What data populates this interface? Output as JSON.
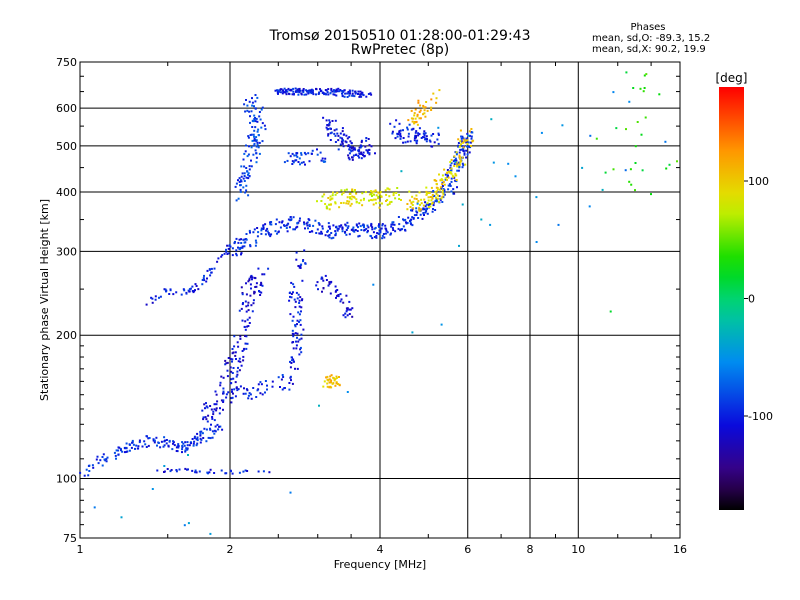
{
  "chart_data": {
    "type": "scatter",
    "title": "Tromsø 20150510 01:28:00-01:29:43",
    "subtitle": "RwPretec (8p)",
    "xlabel": "Frequency [MHz]",
    "ylabel": "Stationary phase Virtual Height [km]",
    "x_scale": "log",
    "y_scale": "log",
    "xlim": [
      1,
      16
    ],
    "ylim": [
      75,
      750
    ],
    "x_ticks": [
      1,
      2,
      4,
      6,
      8,
      10,
      16
    ],
    "x_tick_labels": [
      "1",
      "2",
      "4",
      "6",
      "8",
      "10",
      "16"
    ],
    "y_ticks": [
      75,
      100,
      200,
      300,
      400,
      500,
      600,
      750
    ],
    "y_tick_labels": [
      "75",
      "100",
      "200",
      "300",
      "400",
      "500",
      "600",
      "750"
    ],
    "grid": true,
    "stats": {
      "header": "Phases",
      "o_line": "mean, sd,O: -89.3, 15.2",
      "x_line": "mean, sd,X:  90.2, 19.9"
    },
    "colorbar": {
      "label": "[deg]",
      "range": [
        -180,
        180
      ],
      "ticks": [
        100,
        0,
        -100
      ],
      "tick_labels": [
        "100",
        "0",
        "-100"
      ]
    },
    "clusters": [
      {
        "trace": [
          [
            1.0,
            103
          ],
          [
            1.1,
            108
          ],
          [
            1.2,
            114
          ],
          [
            1.3,
            118
          ],
          [
            1.4,
            120
          ],
          [
            1.5,
            118
          ],
          [
            1.6,
            116
          ],
          [
            1.7,
            120
          ],
          [
            1.8,
            124
          ],
          [
            1.9,
            128
          ]
        ],
        "n": 160,
        "jf": 0.03,
        "jh": 0.025,
        "phase": -95
      },
      {
        "trace": [
          [
            1.45,
            104
          ],
          [
            1.7,
            104
          ],
          [
            2.0,
            103
          ],
          [
            2.5,
            103
          ]
        ],
        "n": 35,
        "jf": 0.02,
        "jh": 0.01,
        "phase": -100
      },
      {
        "trace": [
          [
            1.38,
            235
          ],
          [
            1.5,
            248
          ],
          [
            1.62,
            246
          ],
          [
            1.72,
            252
          ],
          [
            1.85,
            275
          ],
          [
            1.98,
            305
          ],
          [
            2.1,
            320
          ]
        ],
        "n": 70,
        "jf": 0.015,
        "jh": 0.015,
        "phase": -100
      },
      {
        "trace": [
          [
            1.8,
            135
          ],
          [
            1.95,
            150
          ],
          [
            2.05,
            175
          ],
          [
            2.1,
            200
          ],
          [
            2.2,
            250
          ],
          [
            2.3,
            270
          ]
        ],
        "n": 160,
        "jf": 0.04,
        "jh": 0.05,
        "phase": -110
      },
      {
        "trace": [
          [
            2.0,
            150
          ],
          [
            2.3,
            153
          ],
          [
            2.6,
            160
          ],
          [
            2.7,
            180
          ],
          [
            2.75,
            210
          ],
          [
            2.7,
            240
          ],
          [
            2.8,
            300
          ]
        ],
        "n": 130,
        "jf": 0.03,
        "jh": 0.04,
        "phase": -100
      },
      {
        "trace": [
          [
            3.0,
            260
          ],
          [
            3.2,
            250
          ],
          [
            3.4,
            235
          ],
          [
            3.5,
            220
          ]
        ],
        "n": 45,
        "jf": 0.02,
        "jh": 0.04,
        "phase": -115
      },
      {
        "trace": [
          [
            2.05,
            300
          ],
          [
            2.3,
            330
          ],
          [
            2.7,
            345
          ],
          [
            3.2,
            330
          ],
          [
            3.6,
            335
          ],
          [
            4.0,
            330
          ],
          [
            4.5,
            345
          ],
          [
            5.0,
            370
          ],
          [
            5.5,
            410
          ],
          [
            5.8,
            470
          ],
          [
            6.0,
            530
          ]
        ],
        "n": 420,
        "jf": 0.03,
        "jh": 0.035,
        "phase": -95
      },
      {
        "trace": [
          [
            2.1,
            400
          ],
          [
            2.2,
            480
          ],
          [
            2.3,
            560
          ],
          [
            2.15,
            620
          ]
        ],
        "n": 120,
        "jf": 0.03,
        "jh": 0.06,
        "phase": -85
      },
      {
        "trace": [
          [
            2.5,
            650
          ],
          [
            2.8,
            650
          ],
          [
            3.2,
            650
          ],
          [
            3.7,
            640
          ]
        ],
        "n": 160,
        "jf": 0.05,
        "jh": 0.015,
        "phase": -100
      },
      {
        "trace": [
          [
            3.1,
            560
          ],
          [
            3.4,
            510
          ],
          [
            3.6,
            480
          ],
          [
            3.8,
            500
          ]
        ],
        "n": 110,
        "jf": 0.03,
        "jh": 0.04,
        "phase": -105
      },
      {
        "trace": [
          [
            4.2,
            550
          ],
          [
            4.5,
            530
          ],
          [
            4.8,
            520
          ],
          [
            5.2,
            510
          ]
        ],
        "n": 70,
        "jf": 0.03,
        "jh": 0.04,
        "phase": -100
      },
      {
        "trace": [
          [
            2.6,
            470
          ],
          [
            2.9,
            470
          ],
          [
            3.1,
            480
          ]
        ],
        "n": 40,
        "jf": 0.03,
        "jh": 0.03,
        "phase": -90
      },
      {
        "trace": [
          [
            3.1,
            380
          ],
          [
            3.5,
            390
          ],
          [
            3.9,
            385
          ],
          [
            4.3,
            395
          ]
        ],
        "n": 110,
        "jf": 0.04,
        "jh": 0.04,
        "phase": 85
      },
      {
        "trace": [
          [
            4.6,
            380
          ],
          [
            5.0,
            390
          ],
          [
            5.4,
            420
          ],
          [
            5.8,
            470
          ],
          [
            6.0,
            540
          ]
        ],
        "n": 130,
        "jf": 0.03,
        "jh": 0.05,
        "phase": 95
      },
      {
        "trace": [
          [
            4.6,
            560
          ],
          [
            4.9,
            600
          ],
          [
            5.2,
            640
          ]
        ],
        "n": 40,
        "jf": 0.02,
        "jh": 0.05,
        "phase": 110
      },
      {
        "trace": [
          [
            3.1,
            160
          ],
          [
            3.3,
            160
          ]
        ],
        "n": 35,
        "jf": 0.015,
        "jh": 0.03,
        "phase": 105
      },
      {
        "trace": [
          [
            1.0,
            78
          ],
          [
            2.0,
            88
          ],
          [
            6.0,
            300
          ],
          [
            8.0,
            400
          ],
          [
            16.0,
            700
          ]
        ],
        "n": 45,
        "jf": 0.35,
        "jh": 0.45,
        "phase": -50
      },
      {
        "trace": [
          [
            11.0,
            300
          ],
          [
            13.0,
            600
          ],
          [
            15.0,
            500
          ]
        ],
        "n": 30,
        "jf": 0.1,
        "jh": 0.4,
        "phase": 30
      }
    ]
  }
}
